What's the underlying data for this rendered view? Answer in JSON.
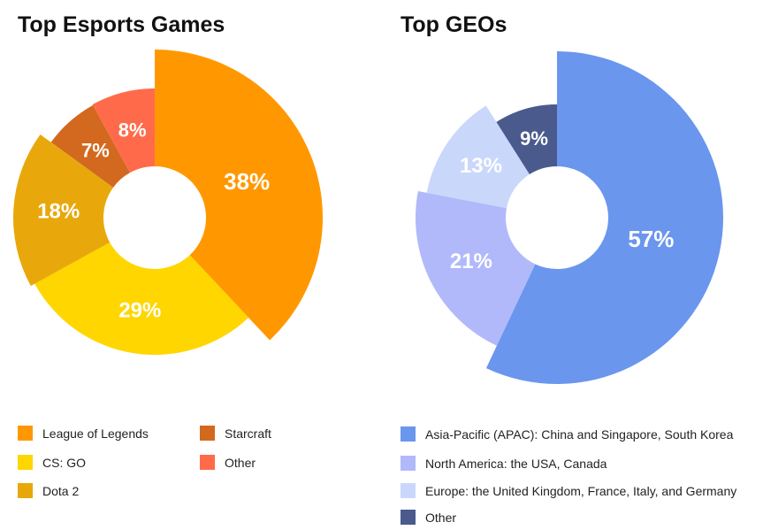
{
  "chart_data": [
    {
      "type": "pie",
      "title": "Top Esports Games",
      "categories": [
        "League of Legends",
        "CS: GO",
        "Dota 2",
        "Starcraft",
        "Other"
      ],
      "values": [
        38,
        29,
        18,
        7,
        8
      ],
      "value_labels": [
        "38%",
        "29%",
        "18%",
        "7%",
        "8%"
      ],
      "colors": [
        "#FF9800",
        "#FFD600",
        "#E8A80C",
        "#D2691E",
        "#FF6B4A"
      ],
      "donut": true,
      "legend_position": "bottom"
    },
    {
      "type": "pie",
      "title": "Top GEOs",
      "categories": [
        "Asia-Pacific (APAC): China and Singapore, South Korea",
        "North America: the USA, Canada",
        "Europe: the United Kingdom, France, Italy, and Germany",
        "Other"
      ],
      "values": [
        57,
        21,
        13,
        9
      ],
      "value_labels": [
        "57%",
        "21%",
        "13%",
        "9%"
      ],
      "colors": [
        "#6A96EE",
        "#B1B9FA",
        "#C9D7FB",
        "#4A5A8C"
      ],
      "donut": true,
      "legend_position": "bottom"
    }
  ]
}
